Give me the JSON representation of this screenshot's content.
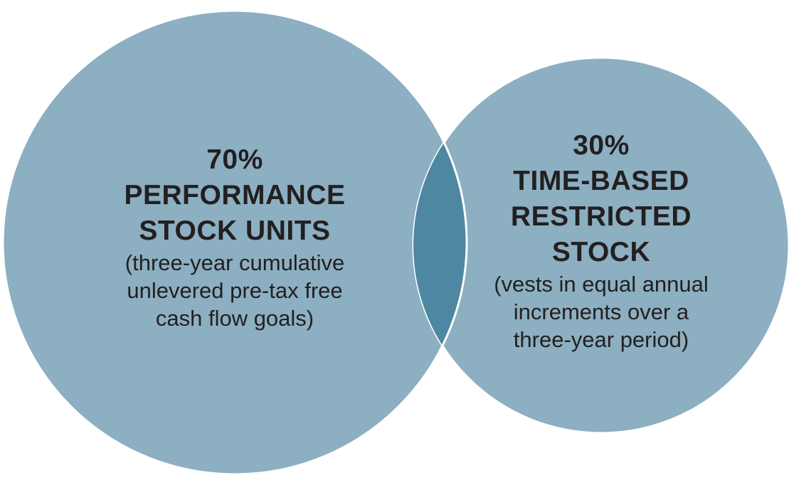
{
  "colors": {
    "circle_fill": "#8cafc1",
    "overlap_fill": "#4e87a1",
    "stroke": "#ffffff",
    "text": "#231f20"
  },
  "left_circle": {
    "percent": "70%",
    "title_line1": "PERFORMANCE",
    "title_line2": "STOCK UNITS",
    "desc_line1": "(three-year cumulative",
    "desc_line2": "unlevered pre-tax free",
    "desc_line3": "cash flow goals)"
  },
  "right_circle": {
    "percent": "30%",
    "title_line1": "TIME-BASED",
    "title_line2": "RESTRICTED",
    "title_line3": "STOCK",
    "desc_line1": "(vests in equal annual",
    "desc_line2": "increments over a",
    "desc_line3": "three-year period)"
  }
}
